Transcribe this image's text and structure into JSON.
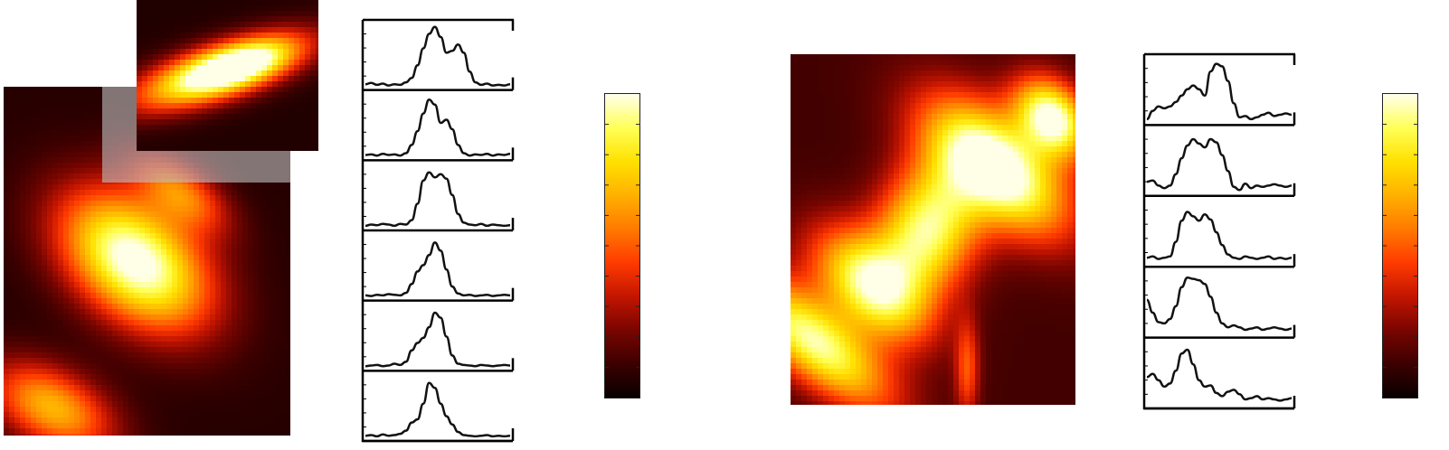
{
  "colormap": {
    "name": "hot",
    "stops": [
      "#0a0000",
      "#3d0000",
      "#7a0500",
      "#c41500",
      "#ff3a00",
      "#ff7a00",
      "#ffb000",
      "#ffe000",
      "#ffff55",
      "#ffffe8"
    ],
    "shade_overlay": "#bdbdbd"
  },
  "chart_data": [
    {
      "type": "heatmap",
      "title": "",
      "xlabel": "",
      "ylabel": "",
      "blobs": [
        {
          "x": 0.46,
          "y": 0.5,
          "sx": 0.12,
          "sy": 0.2,
          "angle": -62,
          "amp": 1.0
        },
        {
          "x": 0.17,
          "y": 0.92,
          "sx": 0.08,
          "sy": 0.16,
          "angle": -70,
          "amp": 0.62
        },
        {
          "x": 0.62,
          "y": 0.3,
          "sx": 0.06,
          "sy": 0.13,
          "angle": -62,
          "amp": 0.45
        }
      ],
      "background": 0.06,
      "inset": {
        "type": "heatmap",
        "blobs": [
          {
            "x": 0.45,
            "y": 0.48,
            "sx": 0.34,
            "sy": 0.12,
            "angle": -22,
            "amp": 1.0
          },
          {
            "x": 0.6,
            "y": 0.42,
            "sx": 0.2,
            "sy": 0.09,
            "angle": -22,
            "amp": 0.35
          }
        ],
        "background": 0.05
      }
    },
    {
      "type": "line",
      "title": "",
      "xlabel": "",
      "ylabel": "",
      "panels": [
        {
          "x": [
            0,
            1,
            2,
            3,
            4,
            5,
            6,
            7,
            8,
            9,
            10,
            11,
            12,
            13,
            14,
            15,
            16,
            17,
            18,
            19,
            20,
            21,
            22,
            23,
            24,
            25
          ],
          "values": [
            0.05,
            0.07,
            0.04,
            0.06,
            0.03,
            0.05,
            0.04,
            0.08,
            0.15,
            0.35,
            0.62,
            0.85,
            0.96,
            0.8,
            0.55,
            0.58,
            0.68,
            0.55,
            0.25,
            0.08,
            0.04,
            0.06,
            0.03,
            0.04,
            0.03,
            0.05
          ]
        },
        {
          "x": [
            0,
            1,
            2,
            3,
            4,
            5,
            6,
            7,
            8,
            9,
            10,
            11,
            12,
            13,
            14,
            15,
            16,
            17,
            18,
            19,
            20,
            21,
            22,
            23,
            24,
            25
          ],
          "values": [
            0.04,
            0.05,
            0.03,
            0.06,
            0.04,
            0.05,
            0.03,
            0.07,
            0.2,
            0.42,
            0.7,
            0.92,
            0.84,
            0.55,
            0.6,
            0.45,
            0.2,
            0.07,
            0.03,
            0.05,
            0.04,
            0.06,
            0.03,
            0.05,
            0.04,
            0.06
          ]
        },
        {
          "x": [
            0,
            1,
            2,
            3,
            4,
            5,
            6,
            7,
            8,
            9,
            10,
            11,
            12,
            13,
            14,
            15,
            16,
            17,
            18,
            19,
            20,
            21,
            22,
            23,
            24,
            25
          ],
          "values": [
            0.03,
            0.05,
            0.04,
            0.06,
            0.05,
            0.03,
            0.06,
            0.05,
            0.12,
            0.38,
            0.75,
            0.88,
            0.8,
            0.85,
            0.78,
            0.52,
            0.22,
            0.08,
            0.05,
            0.04,
            0.06,
            0.03,
            0.05,
            0.04,
            0.03,
            0.04
          ]
        },
        {
          "x": [
            0,
            1,
            2,
            3,
            4,
            5,
            6,
            7,
            8,
            9,
            10,
            11,
            12,
            13,
            14,
            15,
            16,
            17,
            18,
            19,
            20,
            21,
            22,
            23,
            24,
            25
          ],
          "values": [
            0.04,
            0.03,
            0.05,
            0.04,
            0.06,
            0.05,
            0.04,
            0.08,
            0.22,
            0.42,
            0.52,
            0.68,
            0.88,
            0.75,
            0.45,
            0.18,
            0.07,
            0.04,
            0.05,
            0.03,
            0.04,
            0.05,
            0.03,
            0.04,
            0.05,
            0.04
          ]
        },
        {
          "x": [
            0,
            1,
            2,
            3,
            4,
            5,
            6,
            7,
            8,
            9,
            10,
            11,
            12,
            13,
            14,
            15,
            16,
            17,
            18,
            19,
            20,
            21,
            22,
            23,
            24,
            25
          ],
          "values": [
            0.03,
            0.04,
            0.05,
            0.03,
            0.04,
            0.07,
            0.05,
            0.1,
            0.28,
            0.4,
            0.48,
            0.65,
            0.88,
            0.8,
            0.5,
            0.2,
            0.07,
            0.05,
            0.04,
            0.03,
            0.05,
            0.04,
            0.03,
            0.04,
            0.05,
            0.04
          ]
        },
        {
          "x": [
            0,
            1,
            2,
            3,
            4,
            5,
            6,
            7,
            8,
            9,
            10,
            11,
            12,
            13,
            14,
            15,
            16,
            17,
            18,
            19,
            20,
            21,
            22,
            23,
            24,
            25
          ],
          "values": [
            0.04,
            0.05,
            0.03,
            0.06,
            0.04,
            0.05,
            0.07,
            0.12,
            0.25,
            0.3,
            0.55,
            0.88,
            0.8,
            0.55,
            0.35,
            0.22,
            0.1,
            0.05,
            0.04,
            0.03,
            0.04,
            0.05,
            0.03,
            0.04,
            0.03,
            0.04
          ]
        }
      ]
    },
    {
      "type": "colorbar",
      "ticks": 10
    },
    {
      "type": "heatmap",
      "title": "",
      "xlabel": "",
      "ylabel": "",
      "blobs": [
        {
          "x": 0.08,
          "y": 0.82,
          "sx": 0.22,
          "sy": 0.08,
          "angle": 32,
          "amp": 0.82
        },
        {
          "x": 0.28,
          "y": 0.66,
          "sx": 0.16,
          "sy": 0.09,
          "angle": 32,
          "amp": 0.78
        },
        {
          "x": 0.48,
          "y": 0.5,
          "sx": 0.12,
          "sy": 0.14,
          "angle": 40,
          "amp": 0.8
        },
        {
          "x": 0.72,
          "y": 0.32,
          "sx": 0.2,
          "sy": 0.1,
          "angle": 32,
          "amp": 1.0
        },
        {
          "x": 0.92,
          "y": 0.18,
          "sx": 0.1,
          "sy": 0.07,
          "angle": 32,
          "amp": 0.9
        },
        {
          "x": 0.62,
          "y": 0.9,
          "sx": 0.03,
          "sy": 0.1,
          "angle": 0,
          "amp": 0.35
        }
      ],
      "background": 0.12
    },
    {
      "type": "line",
      "title": "",
      "xlabel": "",
      "ylabel": "",
      "panels": [
        {
          "x": [
            0,
            1,
            2,
            3,
            4,
            5,
            6,
            7,
            8,
            9,
            10,
            11,
            12,
            13,
            14,
            15,
            16,
            17,
            18,
            19,
            20,
            21,
            22,
            23,
            24,
            25
          ],
          "values": [
            0.05,
            0.18,
            0.25,
            0.22,
            0.25,
            0.32,
            0.42,
            0.52,
            0.58,
            0.52,
            0.42,
            0.8,
            0.92,
            0.88,
            0.65,
            0.3,
            0.08,
            0.1,
            0.05,
            0.08,
            0.12,
            0.15,
            0.1,
            0.12,
            0.14,
            0.12
          ]
        },
        {
          "x": [
            0,
            1,
            2,
            3,
            4,
            5,
            6,
            7,
            8,
            9,
            10,
            11,
            12,
            13,
            14,
            15,
            16,
            17,
            18,
            19,
            20,
            21,
            22,
            23,
            24,
            25
          ],
          "values": [
            0.18,
            0.2,
            0.12,
            0.08,
            0.12,
            0.3,
            0.55,
            0.75,
            0.85,
            0.78,
            0.72,
            0.85,
            0.8,
            0.6,
            0.35,
            0.1,
            0.05,
            0.15,
            0.08,
            0.12,
            0.1,
            0.12,
            0.14,
            0.12,
            0.1,
            0.12
          ]
        },
        {
          "x": [
            0,
            1,
            2,
            3,
            4,
            5,
            6,
            7,
            8,
            9,
            10,
            11,
            12,
            13,
            14,
            15,
            16,
            17,
            18,
            19,
            20,
            21,
            22,
            23,
            24,
            25
          ],
          "values": [
            0.1,
            0.12,
            0.08,
            0.1,
            0.12,
            0.35,
            0.68,
            0.82,
            0.75,
            0.68,
            0.78,
            0.7,
            0.5,
            0.3,
            0.15,
            0.1,
            0.08,
            0.12,
            0.1,
            0.08,
            0.1,
            0.12,
            0.08,
            0.1,
            0.08,
            0.1
          ]
        },
        {
          "x": [
            0,
            1,
            2,
            3,
            4,
            5,
            6,
            7,
            8,
            9,
            10,
            11,
            12,
            13,
            14,
            15,
            16,
            17,
            18,
            19,
            20,
            21,
            22,
            23,
            24,
            25
          ],
          "values": [
            0.55,
            0.35,
            0.2,
            0.18,
            0.25,
            0.45,
            0.75,
            0.9,
            0.88,
            0.86,
            0.8,
            0.6,
            0.35,
            0.18,
            0.12,
            0.15,
            0.12,
            0.08,
            0.1,
            0.12,
            0.08,
            0.1,
            0.12,
            0.1,
            0.08,
            0.1
          ]
        },
        {
          "x": [
            0,
            1,
            2,
            3,
            4,
            5,
            6,
            7,
            8,
            9,
            10,
            11,
            12,
            13,
            14,
            15,
            16,
            17,
            18,
            19,
            20,
            21,
            22,
            23,
            24,
            25
          ],
          "values": [
            0.45,
            0.5,
            0.4,
            0.3,
            0.35,
            0.55,
            0.82,
            0.88,
            0.65,
            0.4,
            0.3,
            0.32,
            0.2,
            0.15,
            0.22,
            0.25,
            0.18,
            0.1,
            0.12,
            0.15,
            0.1,
            0.12,
            0.1,
            0.08,
            0.1,
            0.12
          ]
        }
      ]
    },
    {
      "type": "colorbar",
      "ticks": 10
    }
  ]
}
